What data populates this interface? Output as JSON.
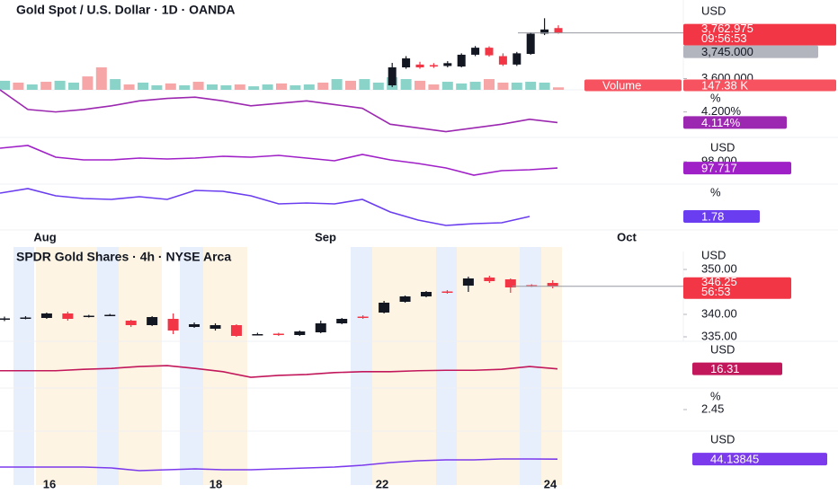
{
  "chart_data": [
    {
      "type": "candlestick",
      "title": "Gold Spot / U.S. Dollar · 1D · OANDA",
      "unit": "USD",
      "ylim": [
        3560,
        3880
      ],
      "yticks": [
        {
          "value": 3600,
          "label": "3,600.000"
        }
      ],
      "last_price": {
        "value": 3762.975,
        "label": "3,762.975"
      },
      "countdown": "09:56:53",
      "level": {
        "value": 3745,
        "label": "3,745.000"
      },
      "up_color": "#131722",
      "down_color": "#f23645",
      "open": [
        3576,
        3640,
        3650,
        3648,
        3645,
        3643,
        3685,
        3710,
        3680,
        3650,
        3688,
        3760,
        3780
      ],
      "high": [
        3656,
        3680,
        3660,
        3655,
        3662,
        3690,
        3716,
        3715,
        3690,
        3695,
        3765,
        3815,
        3790
      ],
      "low": [
        3570,
        3635,
        3635,
        3638,
        3640,
        3640,
        3680,
        3678,
        3645,
        3645,
        3685,
        3755,
        3760
      ],
      "close": [
        3640,
        3672,
        3640,
        3643,
        3655,
        3685,
        3710,
        3683,
        3650,
        3690,
        3760,
        3775,
        3762.975
      ],
      "volume": {
        "name": "Volume",
        "value_label": "147.38 K",
        "ylim": [
          0,
          1500
        ],
        "values": [
          540,
          430,
          320,
          480,
          540,
          430,
          800,
          1340,
          640,
          320,
          430,
          270,
          380,
          270,
          480,
          320,
          270,
          320,
          210,
          320,
          380,
          270,
          320,
          430,
          640,
          540,
          640,
          430,
          750,
          640,
          540,
          320,
          480,
          380,
          480,
          640,
          430,
          430,
          480,
          430,
          147.38
        ],
        "colors": [
          "#89d3c9",
          "#f6a6a6",
          "#89d3c9",
          "#f6a6a6",
          "#89d3c9",
          "#89d3c9",
          "#f6a6a6",
          "#f6a6a6",
          "#89d3c9",
          "#f6a6a6",
          "#89d3c9",
          "#89d3c9",
          "#f6a6a6",
          "#89d3c9",
          "#f6a6a6",
          "#89d3c9",
          "#89d3c9",
          "#f6a6a6",
          "#89d3c9",
          "#89d3c9",
          "#f6a6a6",
          "#89d3c9",
          "#89d3c9",
          "#f6a6a6",
          "#89d3c9",
          "#f6a6a6",
          "#89d3c9",
          "#89d3c9",
          "#89d3c9",
          "#89d3c9",
          "#f6a6a6",
          "#f6a6a6",
          "#89d3c9",
          "#89d3c9",
          "#89d3c9",
          "#f6a6a6",
          "#f6a6a6",
          "#89d3c9",
          "#89d3c9",
          "#89d3c9",
          "#f6a6a6"
        ]
      },
      "x_labels": [
        "Aug",
        "Sep",
        "Oct"
      ],
      "panes": [
        {
          "unit": "%",
          "ylim": [
            4.0,
            4.38
          ],
          "yticks": [
            {
              "value": 4.2,
              "label": "4.200%"
            }
          ],
          "color": "#9c27b0",
          "values": [
            4.38,
            4.22,
            4.2,
            4.22,
            4.25,
            4.29,
            4.31,
            4.32,
            4.29,
            4.25,
            4.27,
            4.29,
            4.26,
            4.23,
            4.1,
            4.07,
            4.04,
            4.07,
            4.1,
            4.14,
            4.114
          ],
          "value_label": "4.114%"
        },
        {
          "unit": "USD",
          "ylim": [
            97,
            99
          ],
          "yticks": [
            {
              "value": 98,
              "label": "98.000"
            }
          ],
          "color": "#a020c8",
          "values": [
            98.6,
            98.72,
            98.2,
            98.08,
            98.08,
            98.16,
            98.12,
            98.16,
            98.24,
            98.2,
            98.28,
            98.16,
            98.04,
            98.32,
            98.08,
            97.92,
            97.72,
            97.4,
            97.6,
            97.64,
            97.717
          ]
        },
        {
          "unit": "%",
          "ylim": [
            1.5,
            2.5
          ],
          "color": "#6a3df0",
          "values": [
            2.3,
            2.4,
            2.24,
            2.18,
            2.16,
            2.22,
            2.16,
            2.36,
            2.34,
            2.24,
            2.06,
            2.08,
            2.06,
            2.16,
            1.88,
            1.7,
            1.58,
            1.62,
            1.64,
            1.78,
            null
          ]
        }
      ]
    },
    {
      "type": "candlestick",
      "title": "SPDR Gold Shares · 4h · NYSE Arca",
      "unit": "USD",
      "ylim": [
        334,
        354
      ],
      "yticks": [
        {
          "value": 350,
          "label": "350.00"
        },
        {
          "value": 340,
          "label": "340.00"
        },
        {
          "value": 335,
          "label": "335.00"
        }
      ],
      "last_price": 346.25,
      "countdown": "56:53",
      "up_color": "#131722",
      "down_color": "#f23645",
      "open": [
        339,
        339.2,
        339.2,
        340.2,
        339.5,
        339.8,
        338.6,
        337.6,
        339,
        337.2,
        336.8,
        337.6,
        335.5,
        335.7,
        335.4,
        336,
        338,
        339.5,
        340.4,
        342.8,
        344,
        345.1,
        346.4,
        348.2,
        347.8,
        346.5,
        347
      ],
      "high": [
        339.5,
        339.6,
        340.4,
        340.6,
        339.9,
        340.1,
        338.8,
        339.6,
        340.2,
        338.2,
        338,
        337.8,
        335.9,
        335.9,
        336.4,
        338.6,
        339.2,
        339.8,
        343,
        344.2,
        345.2,
        345.4,
        348.4,
        348.6,
        348,
        346.7,
        347.6
      ],
      "low": [
        338.5,
        338.9,
        339,
        338.6,
        339.3,
        339.6,
        337.2,
        337.4,
        335.6,
        337,
        336.4,
        335,
        335.3,
        335.2,
        335.2,
        335.8,
        337.8,
        339,
        340.2,
        342.6,
        343.8,
        344.6,
        345,
        347,
        344.8,
        346.1,
        345.8
      ],
      "close": [
        339.1,
        339.3,
        340.2,
        339,
        339.7,
        339.9,
        337.6,
        339.4,
        336.4,
        337.8,
        337.6,
        335.2,
        335.6,
        335.4,
        336.2,
        338,
        339,
        339.3,
        342.6,
        344,
        345,
        344.9,
        348,
        347.4,
        346,
        346.3,
        346.25
      ],
      "x_labels": [
        "16",
        "18",
        "22",
        "24"
      ],
      "panes": [
        {
          "unit": "USD",
          "ylim": [
            15.9,
            16.9
          ],
          "color": "#c2185b",
          "values": [
            16.27,
            16.27,
            16.27,
            16.3,
            16.32,
            16.36,
            16.38,
            16.32,
            16.25,
            16.13,
            16.17,
            16.19,
            16.23,
            16.25,
            16.25,
            16.27,
            16.28,
            16.28,
            16.3,
            16.36,
            16.31
          ]
        },
        {
          "unit": "%",
          "ylim": [
            2.3,
            2.6
          ],
          "yticks": [
            2.45
          ]
        },
        {
          "unit": "USD",
          "ylim": [
            43.85,
            44.45
          ],
          "color": "#7c3aed",
          "values": [
            44.05,
            44.05,
            44.05,
            44.05,
            44.04,
            44.01,
            44.02,
            44.03,
            44.02,
            44.02,
            44.03,
            44.04,
            44.05,
            44.07,
            44.1,
            44.12,
            44.13,
            44.13,
            44.14,
            44.14,
            44.13845
          ]
        }
      ]
    }
  ]
}
